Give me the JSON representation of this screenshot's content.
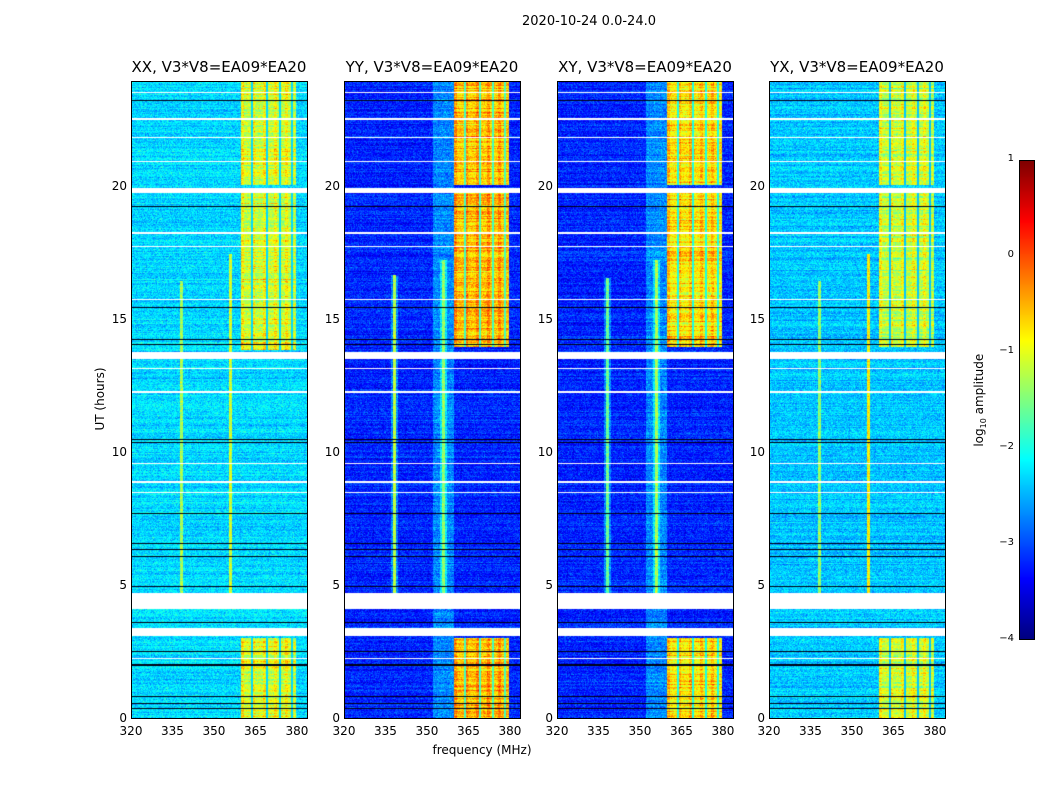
{
  "chart_data": {
    "type": "heatmap",
    "title": "2020-10-24 0.0-24.0",
    "xlabel": "frequency (MHz)",
    "ylabel": "UT (hours)",
    "xlim": [
      320,
      384
    ],
    "ylim": [
      0,
      24
    ],
    "xticks": [
      320,
      335,
      350,
      365,
      380
    ],
    "yticks": [
      0,
      5,
      10,
      15,
      20
    ],
    "flagged_hours": [
      [
        3.1,
        3.4
      ],
      [
        4.1,
        4.7
      ],
      [
        13.55,
        13.8
      ],
      [
        19.8,
        20.0
      ]
    ],
    "dark_rows_hours": [
      0.35,
      0.55,
      0.8,
      2.0,
      2.5,
      3.6,
      4.95,
      6.1,
      6.35,
      6.6,
      7.7,
      10.4,
      10.5,
      14.1,
      14.3,
      15.5,
      19.3,
      23.3
    ],
    "light_rows_hours": [
      2.25,
      8.5,
      8.9,
      9.6,
      12.3,
      13.2,
      15.8,
      17.8,
      18.3,
      21.0,
      21.9,
      22.6,
      23.6
    ],
    "panels": [
      {
        "title": "XX, V3*V8=EA09*EA20",
        "base_level": -2.3,
        "band": {
          "freq": [
            360,
            380
          ],
          "hours": [
            [
              0,
              3
            ],
            [
              13.9,
              19.8
            ],
            [
              20.1,
              24
            ]
          ],
          "level": -1.1
        },
        "rfi_lines": [
          {
            "freq": 338,
            "hours": [
              4.7,
              16.5
            ],
            "level": -1.3
          },
          {
            "freq": 356,
            "hours": [
              4.7,
              17.5
            ],
            "level": -1.1
          }
        ]
      },
      {
        "title": "YY, V3*V8=EA09*EA20",
        "base_level": -3.2,
        "band": {
          "freq": [
            360,
            380
          ],
          "hours": [
            [
              0,
              3
            ],
            [
              14,
              19.8
            ],
            [
              20.1,
              24
            ]
          ],
          "level": -0.6
        },
        "rfi_lines": [
          {
            "freq": 338,
            "hours": [
              4.7,
              16.7
            ],
            "level": -1.2
          },
          {
            "freq": 356,
            "hours": [
              4.7,
              17.3
            ],
            "level": -1.4
          }
        ]
      },
      {
        "title": "XY, V3*V8=EA09*EA20",
        "base_level": -3.2,
        "band": {
          "freq": [
            360,
            380
          ],
          "hours": [
            [
              0,
              3
            ],
            [
              14,
              19.8
            ],
            [
              20.1,
              24
            ]
          ],
          "level": -0.8
        },
        "rfi_lines": [
          {
            "freq": 338,
            "hours": [
              4.7,
              16.6
            ],
            "level": -1.6
          },
          {
            "freq": 356,
            "hours": [
              4.7,
              17.3
            ],
            "level": -1.3
          }
        ]
      },
      {
        "title": "YX, V3*V8=EA09*EA20",
        "base_level": -2.4,
        "band": {
          "freq": [
            360,
            380
          ],
          "hours": [
            [
              0,
              3
            ],
            [
              14,
              19.8
            ],
            [
              20.1,
              24
            ]
          ],
          "level": -1.2
        },
        "rfi_lines": [
          {
            "freq": 338,
            "hours": [
              4.7,
              16.5
            ],
            "level": -1.4
          },
          {
            "freq": 356,
            "hours": [
              4.7,
              17.5
            ],
            "level": -0.8
          }
        ]
      }
    ],
    "colorbar": {
      "label_main": "log",
      "label_sub": "10",
      "label_rest": " amplitude",
      "range": [
        -4,
        1
      ],
      "ticks": [
        "1",
        "0",
        "−1",
        "−2",
        "−3",
        "−4"
      ],
      "colormap": "jet"
    }
  }
}
